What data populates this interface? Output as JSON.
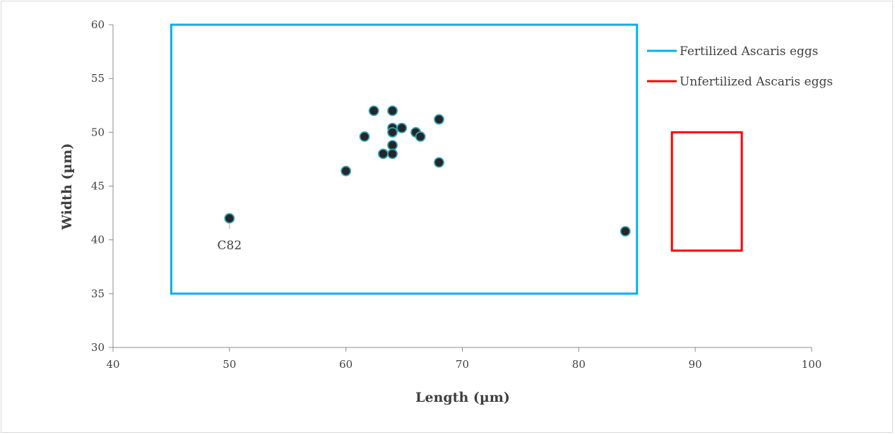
{
  "chart_data": {
    "type": "scatter",
    "xlabel": "Length (µm)",
    "ylabel": "Width (µm)",
    "xlim": [
      40,
      100
    ],
    "ylim": [
      30,
      60
    ],
    "x_ticks": [
      "40",
      "50",
      "60",
      "70",
      "80",
      "90",
      "100"
    ],
    "y_ticks": [
      "30",
      "35",
      "40",
      "45",
      "50",
      "55",
      "60"
    ],
    "grid": false,
    "legend_position": "top-right",
    "series": [
      {
        "marker_color": "#262626",
        "marker_edge_color": "#31a0b8",
        "points": [
          {
            "x": 50,
            "y": 42
          },
          {
            "x": 60,
            "y": 46.4
          },
          {
            "x": 61.6,
            "y": 49.6
          },
          {
            "x": 62.4,
            "y": 52
          },
          {
            "x": 63.2,
            "y": 48
          },
          {
            "x": 64,
            "y": 52
          },
          {
            "x": 64,
            "y": 50.4
          },
          {
            "x": 64,
            "y": 50
          },
          {
            "x": 64,
            "y": 48.8
          },
          {
            "x": 64,
            "y": 48
          },
          {
            "x": 64.8,
            "y": 50.4
          },
          {
            "x": 66,
            "y": 50
          },
          {
            "x": 66.4,
            "y": 49.6
          },
          {
            "x": 68,
            "y": 51.2
          },
          {
            "x": 68,
            "y": 47.2
          },
          {
            "x": 84,
            "y": 40.8
          }
        ]
      }
    ],
    "ranges": [
      {
        "name": "Fertilized Ascaris eggs",
        "color": "#00b0f0",
        "x": [
          45,
          85
        ],
        "y": [
          35,
          60
        ]
      },
      {
        "name": "Unfertilized Ascaris eggs",
        "color": "#ff0000",
        "x": [
          88,
          94
        ],
        "y": [
          39,
          50
        ]
      }
    ],
    "annotations": [
      {
        "text": "C82",
        "x": 50,
        "y": 42
      }
    ]
  }
}
